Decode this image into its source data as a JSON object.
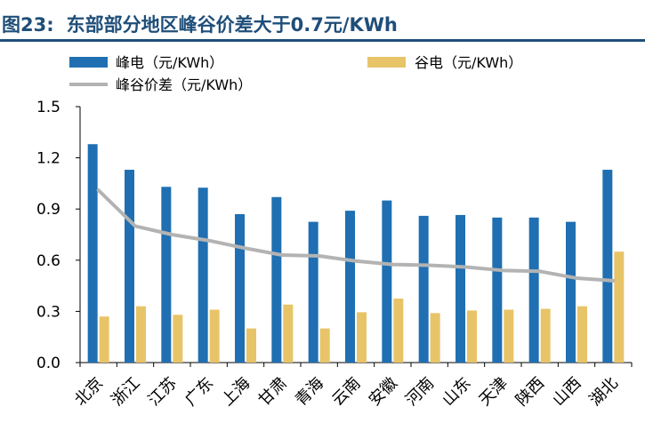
{
  "figure": {
    "label": "图23:",
    "title": "东部部分地区峰谷价差大于0.7元/KWh"
  },
  "colors": {
    "peak": "#1f6fb2",
    "valley": "#e8c468",
    "spread": "#b3b3b3",
    "title": "#1f4e79",
    "axis": "#000000"
  },
  "chart_data": {
    "type": "bar",
    "categories": [
      "北京",
      "浙江",
      "江苏",
      "广东",
      "上海",
      "甘肃",
      "青海",
      "云南",
      "安徽",
      "河南",
      "山东",
      "天津",
      "陕西",
      "山西",
      "湖北"
    ],
    "series": [
      {
        "name": "峰电（元/KWh）",
        "type": "bar",
        "color": "#1f6fb2",
        "values": [
          1.28,
          1.13,
          1.03,
          1.025,
          0.87,
          0.97,
          0.825,
          0.89,
          0.95,
          0.86,
          0.865,
          0.85,
          0.85,
          0.825,
          1.13
        ]
      },
      {
        "name": "谷电（元/KWh）",
        "type": "bar",
        "color": "#e8c468",
        "values": [
          0.27,
          0.33,
          0.28,
          0.31,
          0.2,
          0.34,
          0.2,
          0.295,
          0.375,
          0.29,
          0.305,
          0.31,
          0.315,
          0.33,
          0.65
        ]
      },
      {
        "name": "峰谷价差（元/KWh）",
        "type": "line",
        "color": "#b3b3b3",
        "values": [
          1.01,
          0.8,
          0.75,
          0.715,
          0.67,
          0.63,
          0.625,
          0.595,
          0.575,
          0.57,
          0.56,
          0.54,
          0.535,
          0.495,
          0.48
        ]
      }
    ],
    "yticks": [
      "1.5",
      "1.2",
      "0.9",
      "0.6",
      "0.3",
      "0.0"
    ],
    "ylim": [
      0,
      1.5
    ],
    "legend_position": "top",
    "grid": false
  }
}
